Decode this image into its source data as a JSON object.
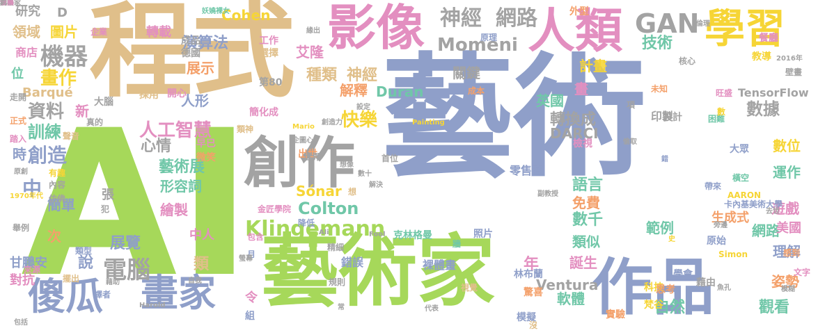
{
  "colors": {
    "blue": "#8f9fc9",
    "tan": "#e0bf8a",
    "green": "#a6d85a",
    "pink": "#e38fc0",
    "gray": "#a3a3a3",
    "yellow": "#f6d536",
    "orange": "#f4a06a",
    "teal": "#70c7a8",
    "background": "#ffffff"
  },
  "words": [
    {
      "text": "藝術",
      "color": "blue"
    },
    {
      "text": "AI",
      "color": "green"
    },
    {
      "text": "程式",
      "color": "tan"
    },
    {
      "text": "藝術家",
      "color": "green"
    },
    {
      "text": "作品",
      "color": "blue"
    },
    {
      "text": "影像",
      "color": "pink"
    },
    {
      "text": "人類",
      "color": "pink"
    },
    {
      "text": "學習",
      "color": "yellow"
    },
    {
      "text": "創作",
      "color": "gray"
    },
    {
      "text": "傻瓜",
      "color": "blue"
    },
    {
      "text": "畫家",
      "color": "blue"
    },
    {
      "text": "Klingemann",
      "color": "green"
    },
    {
      "text": "GAN",
      "color": "gray"
    },
    {
      "text": "神經",
      "color": "gray"
    },
    {
      "text": "網路",
      "color": "gray"
    },
    {
      "text": "機器",
      "color": "gray"
    },
    {
      "text": "電腦",
      "color": "gray"
    },
    {
      "text": "人工智慧",
      "color": "pink"
    },
    {
      "text": "Momeni",
      "color": "gray"
    },
    {
      "text": "Colton",
      "color": "teal"
    },
    {
      "text": "快樂",
      "color": "yellow"
    },
    {
      "text": "解釋",
      "color": "orange"
    },
    {
      "text": "技術",
      "color": "teal"
    },
    {
      "text": "數據",
      "color": "gray"
    },
    {
      "text": "轉換成",
      "color": "gray"
    },
    {
      "text": "創造",
      "color": "blue"
    },
    {
      "text": "訓練",
      "color": "teal"
    },
    {
      "text": "畫作",
      "color": "yellow"
    },
    {
      "text": "資料",
      "color": "gray"
    },
    {
      "text": "種類",
      "color": "tan"
    },
    {
      "text": "神經",
      "color": "tan"
    },
    {
      "text": "演算法",
      "color": "blue"
    },
    {
      "text": "艾隆",
      "color": "pink"
    },
    {
      "text": "Cohen",
      "color": "yellow"
    },
    {
      "text": "Duran",
      "color": "teal"
    },
    {
      "text": "Ventura",
      "color": "gray"
    },
    {
      "text": "DARCI",
      "color": "gray"
    },
    {
      "text": "Barqué",
      "color": "tan"
    },
    {
      "text": "TensorFlow",
      "color": "gray"
    },
    {
      "text": "Sónar",
      "color": "yellow"
    },
    {
      "text": "語言",
      "color": "teal"
    },
    {
      "text": "免費",
      "color": "orange"
    },
    {
      "text": "數千",
      "color": "teal"
    },
    {
      "text": "類似",
      "color": "teal"
    },
    {
      "text": "範例",
      "color": "teal"
    },
    {
      "text": "網路",
      "color": "teal"
    },
    {
      "text": "觀看",
      "color": "teal"
    },
    {
      "text": "自然",
      "color": "teal"
    },
    {
      "text": "軟體",
      "color": "teal"
    },
    {
      "text": "遊戲",
      "color": "pink"
    },
    {
      "text": "美國",
      "color": "pink"
    },
    {
      "text": "姿勢",
      "color": "orange"
    },
    {
      "text": "數位",
      "color": "yellow"
    },
    {
      "text": "運作",
      "color": "teal"
    },
    {
      "text": "理解",
      "color": "blue"
    },
    {
      "text": "藝術展",
      "color": "teal"
    },
    {
      "text": "形容詞",
      "color": "teal"
    },
    {
      "text": "繪製",
      "color": "pink"
    },
    {
      "text": "展覽",
      "color": "blue"
    },
    {
      "text": "說",
      "color": "blue"
    },
    {
      "text": "中人",
      "color": "pink"
    },
    {
      "text": "類",
      "color": "tan"
    },
    {
      "text": "年",
      "color": "pink"
    },
    {
      "text": "誕生",
      "color": "pink"
    },
    {
      "text": "中",
      "color": "blue"
    },
    {
      "text": "時",
      "color": "blue"
    },
    {
      "text": "心情",
      "color": "gray"
    },
    {
      "text": "人形",
      "color": "blue"
    },
    {
      "text": "領域",
      "color": "tan"
    },
    {
      "text": "圖片",
      "color": "yellow"
    },
    {
      "text": "研究",
      "color": "gray"
    },
    {
      "text": "D",
      "color": "gray"
    },
    {
      "text": "轉載",
      "color": "pink"
    },
    {
      "text": "展示",
      "color": "orange"
    },
    {
      "text": "計畫",
      "color": "yellow"
    },
    {
      "text": "關鍵",
      "color": "gray"
    },
    {
      "text": "英國",
      "color": "teal"
    },
    {
      "text": "畫",
      "color": "pink"
    },
    {
      "text": "生成式",
      "color": "orange"
    },
    {
      "text": "新",
      "color": "pink"
    },
    {
      "text": "簡單",
      "color": "blue"
    },
    {
      "text": "次",
      "color": "orange"
    },
    {
      "text": "甘鵬安",
      "color": "blue"
    },
    {
      "text": "對抗",
      "color": "pink"
    },
    {
      "text": "位",
      "color": "teal"
    },
    {
      "text": "商店",
      "color": "pink"
    },
    {
      "text": "張",
      "color": "gray"
    },
    {
      "text": "克林格曼",
      "color": "teal"
    },
    {
      "text": "照片",
      "color": "blue"
    },
    {
      "text": "裸體畫",
      "color": "blue"
    },
    {
      "text": "林布蘭",
      "color": "blue"
    },
    {
      "text": "零售商",
      "color": "blue"
    },
    {
      "text": "驚喜",
      "color": "orange"
    },
    {
      "text": "令",
      "color": "pink"
    },
    {
      "text": "組",
      "color": "blue"
    },
    {
      "text": "錯誤",
      "color": "blue"
    },
    {
      "text": "精細",
      "color": "gray"
    },
    {
      "text": "印製",
      "color": "gray"
    },
    {
      "text": "壁畫",
      "color": "gray"
    },
    {
      "text": "設計",
      "color": "gray"
    },
    {
      "text": "學會",
      "color": "blue"
    },
    {
      "text": "原始",
      "color": "blue"
    },
    {
      "text": "實驗",
      "color": "orange"
    },
    {
      "text": "模擬",
      "color": "blue"
    },
    {
      "text": "梵谷",
      "color": "yellow"
    },
    {
      "text": "科技",
      "color": "yellow"
    },
    {
      "text": "思考",
      "color": "orange"
    },
    {
      "text": "藉由",
      "color": "gray"
    },
    {
      "text": "文字",
      "color": "pink"
    },
    {
      "text": "感到",
      "color": "orange"
    },
    {
      "text": "困難",
      "color": "teal"
    },
    {
      "text": "大眾",
      "color": "blue"
    },
    {
      "text": "橫空",
      "color": "teal"
    },
    {
      "text": "檢視",
      "color": "pink"
    },
    {
      "text": "成本",
      "color": "orange"
    },
    {
      "text": "未知",
      "color": "orange"
    },
    {
      "text": "核心",
      "color": "gray"
    },
    {
      "text": "教導",
      "color": "yellow"
    },
    {
      "text": "餐廳",
      "color": "pink"
    },
    {
      "text": "外型",
      "color": "orange"
    },
    {
      "text": "原理",
      "color": "blue"
    },
    {
      "text": "工作",
      "color": "pink"
    },
    {
      "text": "選擇",
      "color": "tan"
    },
    {
      "text": "第80",
      "color": "gray"
    },
    {
      "text": "採用",
      "color": "tan"
    },
    {
      "text": "開心",
      "color": "pink"
    },
    {
      "text": "大腦",
      "color": "gray"
    },
    {
      "text": "成品",
      "color": "gray"
    },
    {
      "text": "德國",
      "color": "gray"
    },
    {
      "text": "簡化成",
      "color": "pink"
    },
    {
      "text": "早已",
      "color": "pink"
    },
    {
      "text": "微笑",
      "color": "orange"
    },
    {
      "text": "出世",
      "color": "orange"
    },
    {
      "text": "聲音",
      "color": "tan"
    },
    {
      "text": "內容",
      "color": "gray"
    },
    {
      "text": "仿佛",
      "color": "gray"
    },
    {
      "text": "類型",
      "color": "blue"
    },
    {
      "text": "擺出",
      "color": "tan"
    },
    {
      "text": "譯者",
      "color": "blue"
    },
    {
      "text": "降低",
      "color": "blue"
    },
    {
      "text": "包含",
      "color": "pink"
    },
    {
      "text": "企業",
      "color": "pink"
    },
    {
      "text": "正式",
      "color": "orange"
    },
    {
      "text": "踏入",
      "color": "pink"
    },
    {
      "text": "走開",
      "color": "gray"
    },
    {
      "text": "有趣",
      "color": "yellow"
    },
    {
      "text": "原創",
      "color": "gray"
    },
    {
      "text": "舉例",
      "color": "gray"
    },
    {
      "text": "1970年代",
      "color": "yellow"
    },
    {
      "text": "金匠學院",
      "color": "pink"
    },
    {
      "text": "數十",
      "color": "gray"
    },
    {
      "text": "創造力",
      "color": "gray"
    },
    {
      "text": "Mario",
      "color": "yellow"
    },
    {
      "text": "Painting",
      "color": "yellow"
    },
    {
      "text": "Ali",
      "color": "gray"
    },
    {
      "text": "Fool",
      "color": "gray"
    },
    {
      "text": "Harold",
      "color": "gray"
    },
    {
      "text": "2016年",
      "color": "gray"
    },
    {
      "text": "Simon",
      "color": "yellow"
    },
    {
      "text": "AARON",
      "color": "yellow"
    },
    {
      "text": "卡內基美術大學",
      "color": "blue"
    },
    {
      "text": "帶來",
      "color": "blue"
    },
    {
      "text": "真的",
      "color": "gray"
    },
    {
      "text": "犯",
      "color": "gray"
    },
    {
      "text": "來源",
      "color": "pink"
    },
    {
      "text": "類神",
      "color": "tan"
    },
    {
      "text": "月",
      "color": "blue"
    },
    {
      "text": "想",
      "color": "tan"
    },
    {
      "text": "沒",
      "color": "tan"
    },
    {
      "text": "數",
      "color": "yellow"
    },
    {
      "text": "項",
      "color": "gray"
    },
    {
      "text": "牆",
      "color": "teal"
    },
    {
      "text": "首位",
      "color": "gray"
    },
    {
      "text": "世界",
      "color": "gray"
    },
    {
      "text": "規則",
      "color": "gray"
    },
    {
      "text": "旺盛",
      "color": "pink"
    },
    {
      "text": "妖嬈裸女",
      "color": "teal"
    },
    {
      "text": "緣出",
      "color": "gray"
    },
    {
      "text": "倫理",
      "color": "gray"
    },
    {
      "text": "視覺",
      "color": "tan"
    },
    {
      "text": "副教授",
      "color": "gray"
    },
    {
      "text": "偷取",
      "color": "gray"
    },
    {
      "text": "錯",
      "color": "blue"
    },
    {
      "text": "去世",
      "color": "gray"
    },
    {
      "text": "旁邊",
      "color": "gray"
    },
    {
      "text": "史",
      "color": "yellow"
    },
    {
      "text": "魚孔",
      "color": "gray"
    },
    {
      "text": "模糊",
      "color": "gray"
    },
    {
      "text": "包括",
      "color": "gray"
    },
    {
      "text": "自我",
      "color": "gray"
    },
    {
      "text": "藉助",
      "color": "gray"
    },
    {
      "text": "常",
      "color": "gray"
    },
    {
      "text": "代表",
      "color": "gray"
    },
    {
      "text": "設定",
      "color": "gray"
    },
    {
      "text": "解決",
      "color": "gray"
    },
    {
      "text": "想像",
      "color": "gray"
    },
    {
      "text": "螢幕",
      "color": "gray"
    },
    {
      "text": "企圖心",
      "color": "gray"
    },
    {
      "text": "套",
      "color": "gray"
    },
    {
      "text": "科學家",
      "color": "gray"
    },
    {
      "text": "風格",
      "color": "gray"
    },
    {
      "text": "發展",
      "color": "pink"
    },
    {
      "text": "前",
      "color": "gray"
    }
  ]
}
